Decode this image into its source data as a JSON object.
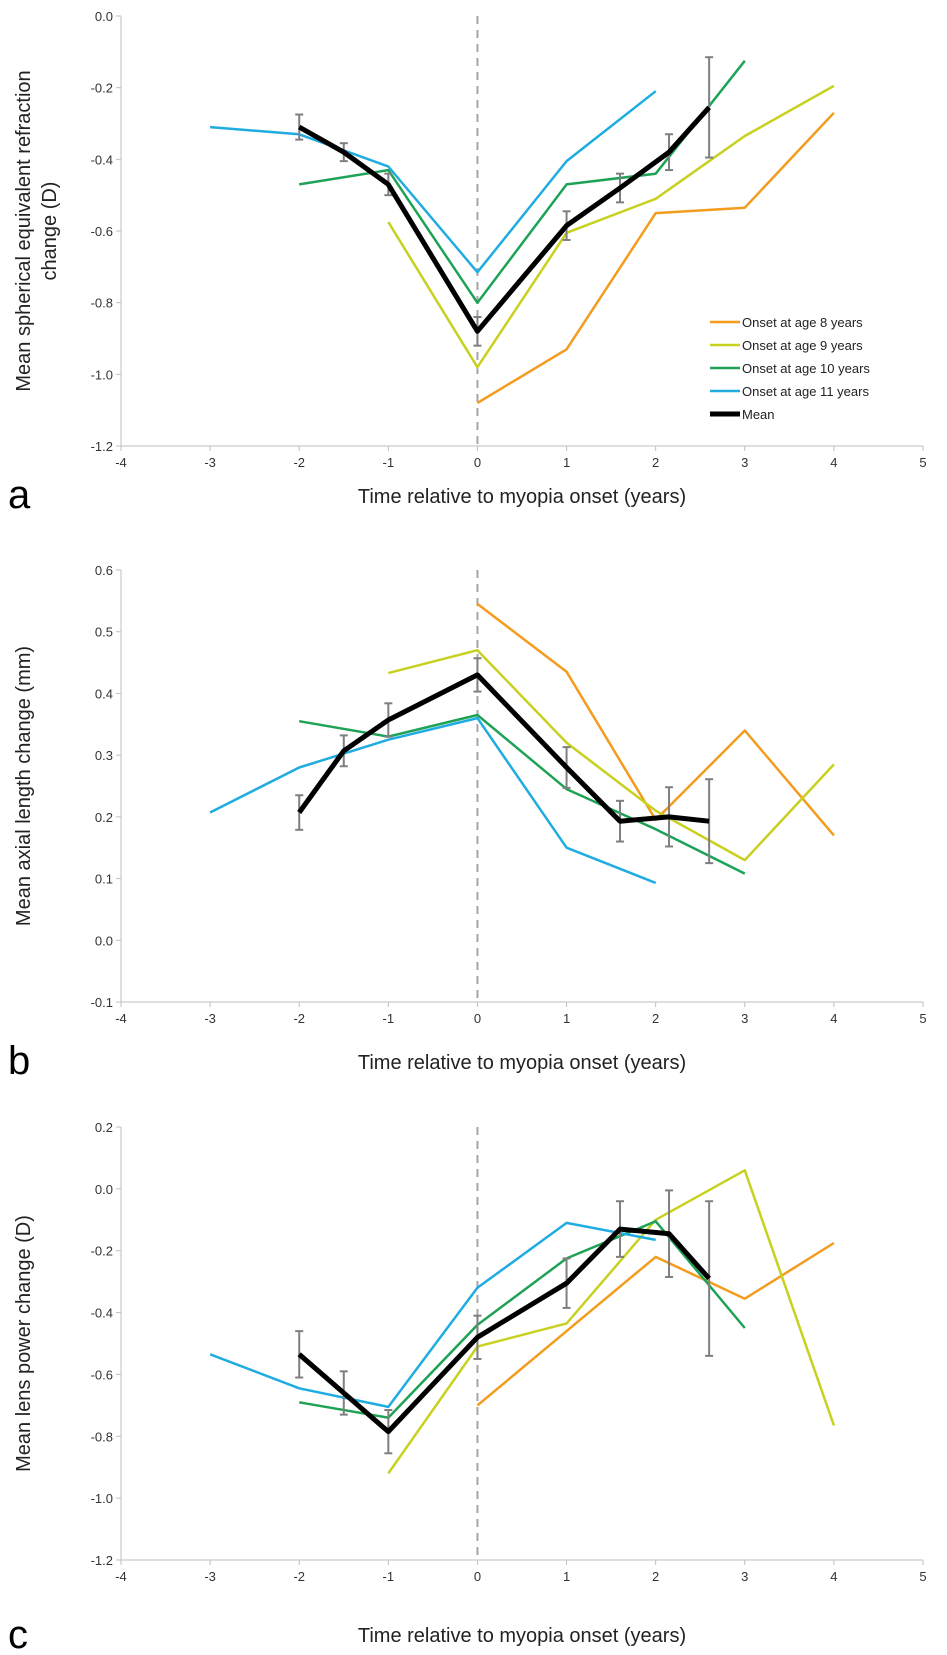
{
  "colors": {
    "onset8": "#F39C1E",
    "onset9": "#C8D11F",
    "onset10": "#1EA356",
    "onset11": "#20ACE0",
    "mean": "#000000",
    "errorbar": "#7F7F7F",
    "onset_line": "#A6A6A6"
  },
  "legend": {
    "items": [
      {
        "label": "Onset at age 8 years",
        "color_key": "onset8"
      },
      {
        "label": "Onset at age 9 years",
        "color_key": "onset9"
      },
      {
        "label": "Onset at age 10 years",
        "color_key": "onset10"
      },
      {
        "label": "Onset at age 11 years",
        "color_key": "onset11"
      },
      {
        "label": "Mean",
        "color_key": "mean"
      }
    ]
  },
  "chart_data": [
    {
      "type": "line",
      "panel_label": "a",
      "xlabel": "Time relative to myopia onset (years)",
      "ylabel": "Mean spherical equivalent refraction change (D)",
      "xlim": [
        -4,
        5
      ],
      "ylim": [
        -1.2,
        0.0
      ],
      "xticks": [
        -4,
        -3,
        -2,
        -1,
        0,
        1,
        2,
        3,
        4,
        5
      ],
      "yticks": [
        0.0,
        -0.2,
        -0.4,
        -0.6,
        -0.8,
        -1.0,
        -1.2
      ],
      "ytick_labels": [
        "0.0",
        "-0.2",
        "-0.4",
        "-0.6",
        "-0.8",
        "-1.0",
        "-1.2"
      ],
      "onset_x": 0,
      "legend": true,
      "legend_position": "bottom-right",
      "series": [
        {
          "name": "Onset at age 8 years",
          "color_key": "onset8",
          "x": [
            0,
            1,
            2,
            3,
            4
          ],
          "y": [
            -1.08,
            -0.93,
            -0.55,
            -0.535,
            -0.27
          ]
        },
        {
          "name": "Onset at age 9 years",
          "color_key": "onset9",
          "x": [
            -1,
            0,
            1,
            2,
            3,
            4
          ],
          "y": [
            -0.575,
            -0.98,
            -0.605,
            -0.51,
            -0.335,
            -0.195
          ]
        },
        {
          "name": "Onset at age 10 years",
          "color_key": "onset10",
          "x": [
            -2,
            -1,
            0,
            1,
            2,
            3
          ],
          "y": [
            -0.47,
            -0.43,
            -0.8,
            -0.47,
            -0.44,
            -0.125
          ]
        },
        {
          "name": "Onset at age 11 years",
          "color_key": "onset11",
          "x": [
            -3,
            -2,
            -1,
            0,
            1,
            2
          ],
          "y": [
            -0.31,
            -0.33,
            -0.42,
            -0.715,
            -0.405,
            -0.21
          ]
        },
        {
          "name": "Mean",
          "color_key": "mean",
          "x": [
            -2,
            -1.5,
            -1,
            0,
            1,
            1.6,
            2.15,
            2.6
          ],
          "y": [
            -0.31,
            -0.38,
            -0.47,
            -0.88,
            -0.585,
            -0.48,
            -0.38,
            -0.255
          ],
          "err": [
            0.035,
            0.025,
            0.03,
            0.04,
            0.04,
            0.04,
            0.05,
            0.14
          ]
        }
      ]
    },
    {
      "type": "line",
      "panel_label": "b",
      "xlabel": "Time relative to myopia onset (years)",
      "ylabel": "Mean axial length change (mm)",
      "xlim": [
        -4,
        5
      ],
      "ylim": [
        -0.1,
        0.6
      ],
      "xticks": [
        -4,
        -3,
        -2,
        -1,
        0,
        1,
        2,
        3,
        4,
        5
      ],
      "yticks": [
        0.6,
        0.5,
        0.4,
        0.3,
        0.2,
        0.1,
        0.0,
        -0.1
      ],
      "ytick_labels": [
        "0.6",
        "0.5",
        "0.4",
        "0.3",
        "0.2",
        "0.1",
        "0.0",
        "-0.1"
      ],
      "onset_x": 0,
      "legend": false,
      "series": [
        {
          "name": "Onset at age 8 years",
          "color_key": "onset8",
          "x": [
            0,
            1,
            2,
            3,
            4
          ],
          "y": [
            0.545,
            0.435,
            0.195,
            0.34,
            0.17
          ]
        },
        {
          "name": "Onset at age 9 years",
          "color_key": "onset9",
          "x": [
            -1,
            0,
            1,
            2,
            3,
            4
          ],
          "y": [
            0.433,
            0.47,
            0.32,
            0.21,
            0.13,
            0.285
          ]
        },
        {
          "name": "Onset at age 10 years",
          "color_key": "onset10",
          "x": [
            -2,
            -1,
            0,
            1,
            2,
            3
          ],
          "y": [
            0.355,
            0.33,
            0.365,
            0.245,
            0.18,
            0.108
          ]
        },
        {
          "name": "Onset at age 11 years",
          "color_key": "onset11",
          "x": [
            -3,
            -2,
            -1,
            0,
            1,
            2
          ],
          "y": [
            0.207,
            0.28,
            0.325,
            0.36,
            0.15,
            0.093
          ]
        },
        {
          "name": "Mean",
          "color_key": "mean",
          "x": [
            -2,
            -1.5,
            -1,
            0,
            1,
            1.6,
            2.15,
            2.6
          ],
          "y": [
            0.207,
            0.307,
            0.357,
            0.43,
            0.28,
            0.193,
            0.2,
            0.193
          ],
          "err": [
            0.028,
            0.025,
            0.027,
            0.027,
            0.033,
            0.033,
            0.048,
            0.068
          ]
        }
      ]
    },
    {
      "type": "line",
      "panel_label": "c",
      "xlabel": "Time relative to myopia onset (years)",
      "ylabel": "Mean lens power change (D)",
      "xlim": [
        -4,
        5
      ],
      "ylim": [
        -1.2,
        0.2
      ],
      "xticks": [
        -4,
        -3,
        -2,
        -1,
        0,
        1,
        2,
        3,
        4,
        5
      ],
      "yticks": [
        0.2,
        0.0,
        -0.2,
        -0.4,
        -0.6,
        -0.8,
        -1.0,
        -1.2
      ],
      "ytick_labels": [
        "0.2",
        "0.0",
        "-0.2",
        "-0.4",
        "-0.6",
        "-0.8",
        "-1.0",
        "-1.2"
      ],
      "onset_x": 0,
      "legend": false,
      "series": [
        {
          "name": "Onset at age 8 years",
          "color_key": "onset8",
          "x": [
            0,
            1,
            2,
            3,
            4
          ],
          "y": [
            -0.7,
            -0.46,
            -0.22,
            -0.355,
            -0.175
          ]
        },
        {
          "name": "Onset at age 9 years",
          "color_key": "onset9",
          "x": [
            -1,
            0,
            1,
            2,
            3,
            4
          ],
          "y": [
            -0.92,
            -0.51,
            -0.435,
            -0.1,
            0.06,
            -0.765
          ]
        },
        {
          "name": "Onset at age 10 years",
          "color_key": "onset10",
          "x": [
            -2,
            -1,
            0,
            1,
            2,
            3
          ],
          "y": [
            -0.69,
            -0.74,
            -0.44,
            -0.225,
            -0.105,
            -0.45
          ]
        },
        {
          "name": "Onset at age 11 years",
          "color_key": "onset11",
          "x": [
            -3,
            -2,
            -1,
            0,
            1,
            2
          ],
          "y": [
            -0.535,
            -0.645,
            -0.705,
            -0.32,
            -0.11,
            -0.165
          ]
        },
        {
          "name": "Mean",
          "color_key": "mean",
          "x": [
            -2,
            -1.5,
            -1,
            0,
            1,
            1.6,
            2.15,
            2.6
          ],
          "y": [
            -0.535,
            -0.66,
            -0.785,
            -0.48,
            -0.305,
            -0.13,
            -0.145,
            -0.29
          ],
          "err": [
            0.075,
            0.07,
            0.07,
            0.07,
            0.08,
            0.09,
            0.14,
            0.25
          ]
        }
      ]
    }
  ]
}
